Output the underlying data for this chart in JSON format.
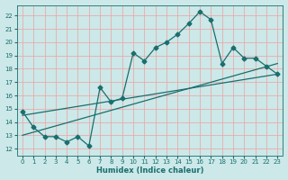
{
  "xlabel": "Humidex (Indice chaleur)",
  "ylabel": "",
  "bg_color": "#cce8e8",
  "grid_color": "#f0a0a0",
  "line_color": "#1a6e6e",
  "xlim": [
    -0.5,
    23.5
  ],
  "ylim": [
    11.5,
    22.8
  ],
  "yticks": [
    12,
    13,
    14,
    15,
    16,
    17,
    18,
    19,
    20,
    21,
    22
  ],
  "xticks": [
    0,
    1,
    2,
    3,
    4,
    5,
    6,
    7,
    8,
    9,
    10,
    11,
    12,
    13,
    14,
    15,
    16,
    17,
    18,
    19,
    20,
    21,
    22,
    23
  ],
  "main_series_x": [
    0,
    1,
    2,
    3,
    4,
    5,
    6,
    7,
    8,
    9,
    10,
    11,
    12,
    13,
    14,
    15,
    16,
    17,
    18,
    19,
    20,
    21,
    22,
    23
  ],
  "main_series_y": [
    14.8,
    13.6,
    12.9,
    12.9,
    12.5,
    12.9,
    12.2,
    16.6,
    15.5,
    15.8,
    19.2,
    18.6,
    19.6,
    20.0,
    20.6,
    21.4,
    22.3,
    21.7,
    18.4,
    19.6,
    18.8,
    18.8,
    18.2,
    17.6
  ],
  "line1_x": [
    0,
    23
  ],
  "line1_y": [
    14.5,
    17.6
  ],
  "line2_x": [
    0,
    23
  ],
  "line2_y": [
    13.0,
    18.4
  ],
  "marker": "D",
  "markersize": 2.5,
  "linewidth": 0.9
}
